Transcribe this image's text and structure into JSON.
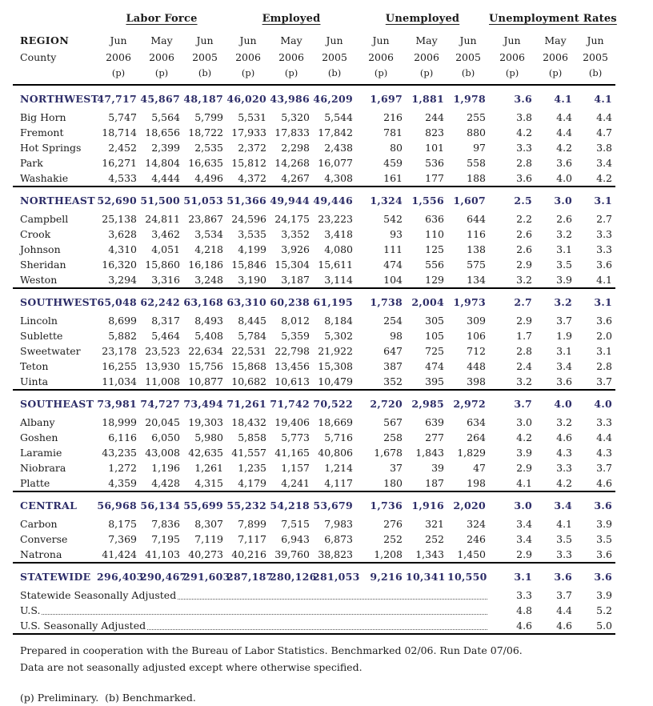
{
  "colors": {
    "navy": "#2d2d68",
    "rule": "#000000"
  },
  "header": {
    "groups": [
      "Labor Force",
      "Employed",
      "Unemployed",
      "Unemployment Rates"
    ],
    "region_label": "REGION",
    "county_label": "County",
    "months": [
      "Jun",
      "May",
      "Jun"
    ],
    "years": [
      "2006",
      "2006",
      "2005"
    ],
    "marks": [
      "(p)",
      "(p)",
      "(b)"
    ]
  },
  "sections": [
    {
      "region": "NORTHWEST",
      "totals": [
        "47,717",
        "45,867",
        "48,187",
        "46,020",
        "43,986",
        "46,209",
        "1,697",
        "1,881",
        "1,978",
        "3.6",
        "4.1",
        "4.1"
      ],
      "counties": [
        {
          "name": "Big Horn",
          "values": [
            "5,747",
            "5,564",
            "5,799",
            "5,531",
            "5,320",
            "5,544",
            "216",
            "244",
            "255",
            "3.8",
            "4.4",
            "4.4"
          ]
        },
        {
          "name": "Fremont",
          "values": [
            "18,714",
            "18,656",
            "18,722",
            "17,933",
            "17,833",
            "17,842",
            "781",
            "823",
            "880",
            "4.2",
            "4.4",
            "4.7"
          ]
        },
        {
          "name": "Hot Springs",
          "values": [
            "2,452",
            "2,399",
            "2,535",
            "2,372",
            "2,298",
            "2,438",
            "80",
            "101",
            "97",
            "3.3",
            "4.2",
            "3.8"
          ]
        },
        {
          "name": "Park",
          "values": [
            "16,271",
            "14,804",
            "16,635",
            "15,812",
            "14,268",
            "16,077",
            "459",
            "536",
            "558",
            "2.8",
            "3.6",
            "3.4"
          ]
        },
        {
          "name": "Washakie",
          "values": [
            "4,533",
            "4,444",
            "4,496",
            "4,372",
            "4,267",
            "4,308",
            "161",
            "177",
            "188",
            "3.6",
            "4.0",
            "4.2"
          ]
        }
      ]
    },
    {
      "region": "NORTHEAST",
      "totals": [
        "52,690",
        "51,500",
        "51,053",
        "51,366",
        "49,944",
        "49,446",
        "1,324",
        "1,556",
        "1,607",
        "2.5",
        "3.0",
        "3.1"
      ],
      "counties": [
        {
          "name": "Campbell",
          "values": [
            "25,138",
            "24,811",
            "23,867",
            "24,596",
            "24,175",
            "23,223",
            "542",
            "636",
            "644",
            "2.2",
            "2.6",
            "2.7"
          ]
        },
        {
          "name": "Crook",
          "values": [
            "3,628",
            "3,462",
            "3,534",
            "3,535",
            "3,352",
            "3,418",
            "93",
            "110",
            "116",
            "2.6",
            "3.2",
            "3.3"
          ]
        },
        {
          "name": "Johnson",
          "values": [
            "4,310",
            "4,051",
            "4,218",
            "4,199",
            "3,926",
            "4,080",
            "111",
            "125",
            "138",
            "2.6",
            "3.1",
            "3.3"
          ]
        },
        {
          "name": "Sheridan",
          "values": [
            "16,320",
            "15,860",
            "16,186",
            "15,846",
            "15,304",
            "15,611",
            "474",
            "556",
            "575",
            "2.9",
            "3.5",
            "3.6"
          ]
        },
        {
          "name": "Weston",
          "values": [
            "3,294",
            "3,316",
            "3,248",
            "3,190",
            "3,187",
            "3,114",
            "104",
            "129",
            "134",
            "3.2",
            "3.9",
            "4.1"
          ]
        }
      ]
    },
    {
      "region": "SOUTHWEST",
      "totals": [
        "65,048",
        "62,242",
        "63,168",
        "63,310",
        "60,238",
        "61,195",
        "1,738",
        "2,004",
        "1,973",
        "2.7",
        "3.2",
        "3.1"
      ],
      "counties": [
        {
          "name": "Lincoln",
          "values": [
            "8,699",
            "8,317",
            "8,493",
            "8,445",
            "8,012",
            "8,184",
            "254",
            "305",
            "309",
            "2.9",
            "3.7",
            "3.6"
          ]
        },
        {
          "name": "Sublette",
          "values": [
            "5,882",
            "5,464",
            "5,408",
            "5,784",
            "5,359",
            "5,302",
            "98",
            "105",
            "106",
            "1.7",
            "1.9",
            "2.0"
          ]
        },
        {
          "name": "Sweetwater",
          "values": [
            "23,178",
            "23,523",
            "22,634",
            "22,531",
            "22,798",
            "21,922",
            "647",
            "725",
            "712",
            "2.8",
            "3.1",
            "3.1"
          ]
        },
        {
          "name": "Teton",
          "values": [
            "16,255",
            "13,930",
            "15,756",
            "15,868",
            "13,456",
            "15,308",
            "387",
            "474",
            "448",
            "2.4",
            "3.4",
            "2.8"
          ]
        },
        {
          "name": "Uinta",
          "values": [
            "11,034",
            "11,008",
            "10,877",
            "10,682",
            "10,613",
            "10,479",
            "352",
            "395",
            "398",
            "3.2",
            "3.6",
            "3.7"
          ]
        }
      ]
    },
    {
      "region": "SOUTHEAST",
      "totals": [
        "73,981",
        "74,727",
        "73,494",
        "71,261",
        "71,742",
        "70,522",
        "2,720",
        "2,985",
        "2,972",
        "3.7",
        "4.0",
        "4.0"
      ],
      "counties": [
        {
          "name": "Albany",
          "values": [
            "18,999",
            "20,045",
            "19,303",
            "18,432",
            "19,406",
            "18,669",
            "567",
            "639",
            "634",
            "3.0",
            "3.2",
            "3.3"
          ]
        },
        {
          "name": "Goshen",
          "values": [
            "6,116",
            "6,050",
            "5,980",
            "5,858",
            "5,773",
            "5,716",
            "258",
            "277",
            "264",
            "4.2",
            "4.6",
            "4.4"
          ]
        },
        {
          "name": "Laramie",
          "values": [
            "43,235",
            "43,008",
            "42,635",
            "41,557",
            "41,165",
            "40,806",
            "1,678",
            "1,843",
            "1,829",
            "3.9",
            "4.3",
            "4.3"
          ]
        },
        {
          "name": "Niobrara",
          "values": [
            "1,272",
            "1,196",
            "1,261",
            "1,235",
            "1,157",
            "1,214",
            "37",
            "39",
            "47",
            "2.9",
            "3.3",
            "3.7"
          ]
        },
        {
          "name": "Platte",
          "values": [
            "4,359",
            "4,428",
            "4,315",
            "4,179",
            "4,241",
            "4,117",
            "180",
            "187",
            "198",
            "4.1",
            "4.2",
            "4.6"
          ]
        }
      ]
    },
    {
      "region": "CENTRAL",
      "totals": [
        "56,968",
        "56,134",
        "55,699",
        "55,232",
        "54,218",
        "53,679",
        "1,736",
        "1,916",
        "2,020",
        "3.0",
        "3.4",
        "3.6"
      ],
      "counties": [
        {
          "name": "Carbon",
          "values": [
            "8,175",
            "7,836",
            "8,307",
            "7,899",
            "7,515",
            "7,983",
            "276",
            "321",
            "324",
            "3.4",
            "4.1",
            "3.9"
          ]
        },
        {
          "name": "Converse",
          "values": [
            "7,369",
            "7,195",
            "7,119",
            "7,117",
            "6,943",
            "6,873",
            "252",
            "252",
            "246",
            "3.4",
            "3.5",
            "3.5"
          ]
        },
        {
          "name": "Natrona",
          "values": [
            "41,424",
            "41,103",
            "40,273",
            "40,216",
            "39,760",
            "38,823",
            "1,208",
            "1,343",
            "1,450",
            "2.9",
            "3.3",
            "3.6"
          ]
        }
      ]
    }
  ],
  "statewide": {
    "region": "STATEWIDE",
    "totals": [
      "296,403",
      "290,467",
      "291,603",
      "287,187",
      "280,126",
      "281,053",
      "9,216",
      "10,341",
      "10,550",
      "3.1",
      "3.6",
      "3.6"
    ],
    "extra_rows": [
      {
        "label": "Statewide Seasonally Adjusted ",
        "rates": [
          "3.3",
          "3.7",
          "3.9"
        ]
      },
      {
        "label": "U.S.",
        "rates": [
          "4.8",
          "4.4",
          "5.2"
        ]
      },
      {
        "label": "U.S. Seasonally Adjusted",
        "rates": [
          "4.6",
          "4.6",
          "5.0"
        ]
      }
    ]
  },
  "footer": {
    "line1": "Prepared in cooperation with the Bureau of Labor Statistics. Benchmarked 02/06. Run Date 07/06.",
    "line2": "Data are not seasonally adjusted except where otherwise specified.",
    "line3": "(p) Preliminary.  (b) Benchmarked."
  }
}
